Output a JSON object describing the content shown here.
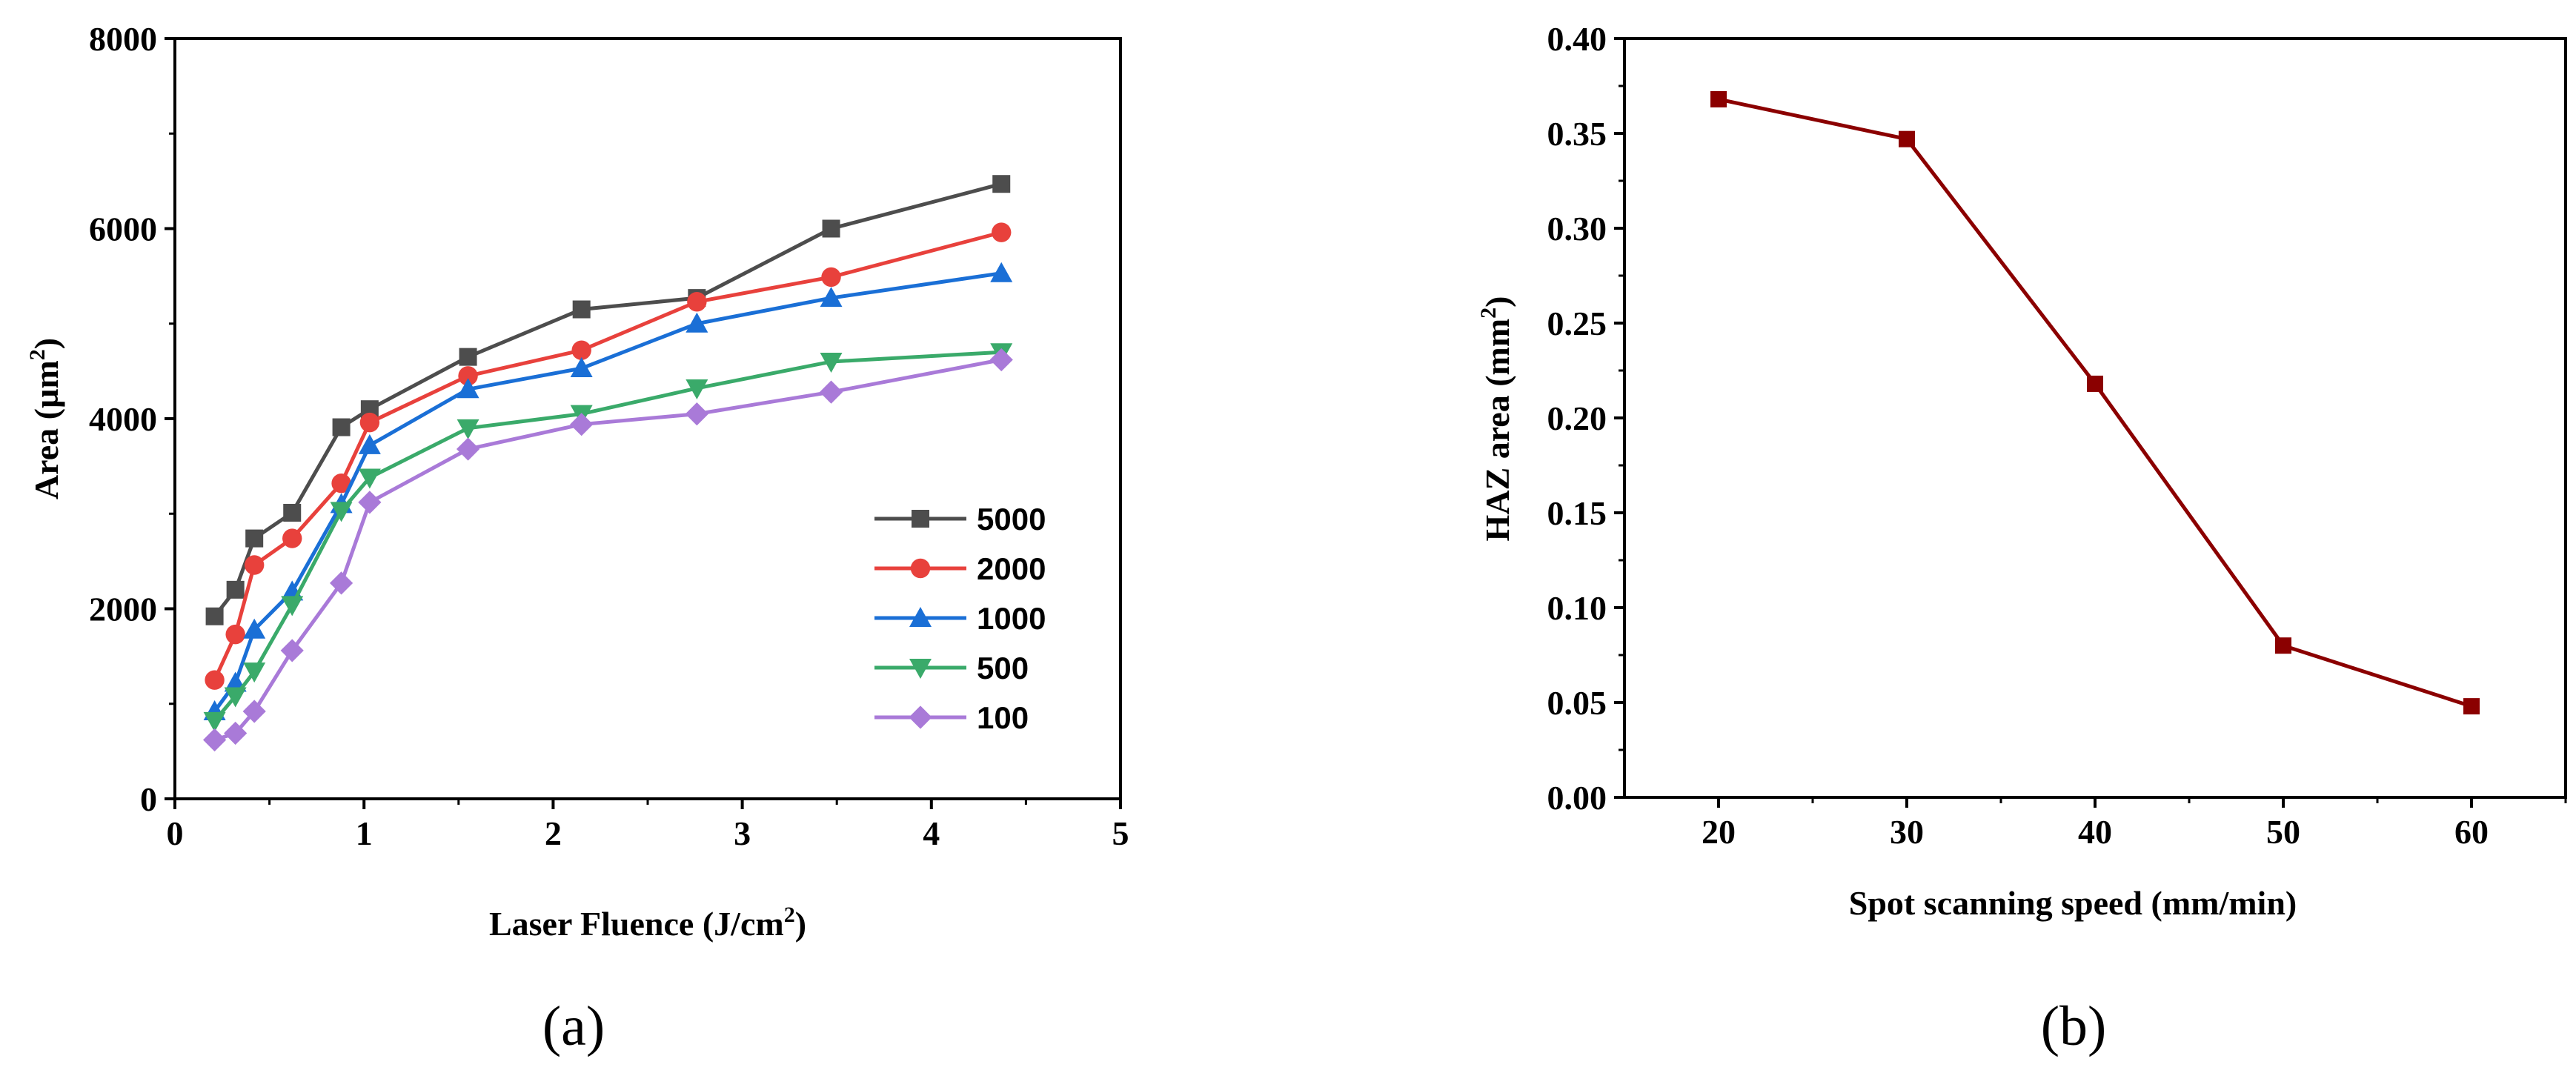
{
  "chart_data": [
    {
      "type": "line",
      "panel_label": "(a)",
      "xlabel": "Laser Fluence (J/cm2)",
      "xlabel_parts": {
        "main": "Laser Fluence (J/cm",
        "sup": "2",
        "close": ")"
      },
      "ylabel": "Area (µm2)",
      "ylabel_parts": {
        "main": "Area (µm",
        "sup": "2",
        "close": ")"
      },
      "xlim": [
        0,
        5
      ],
      "ylim": [
        0,
        8000
      ],
      "xticks": [
        "0",
        "1",
        "2",
        "3",
        "4",
        "5"
      ],
      "xtick_values": [
        0,
        1,
        2,
        3,
        4,
        5
      ],
      "yticks": [
        "0",
        "2000",
        "4000",
        "6000",
        "8000"
      ],
      "ytick_values": [
        0,
        2000,
        4000,
        6000,
        8000
      ],
      "legend_position": "bottom-right",
      "series": [
        {
          "name": "5000",
          "color": "#4d4d4d",
          "marker": "square",
          "x": [
            0.21,
            0.32,
            0.42,
            0.62,
            0.88,
            1.03,
            1.55,
            2.15,
            2.76,
            3.47,
            4.37
          ],
          "y": [
            1920,
            2200,
            2740,
            3010,
            3910,
            4100,
            4650,
            5150,
            5270,
            6000,
            6470
          ]
        },
        {
          "name": "2000",
          "color": "#e8413c",
          "marker": "circle",
          "x": [
            0.21,
            0.32,
            0.42,
            0.62,
            0.88,
            1.03,
            1.55,
            2.15,
            2.76,
            3.47,
            4.37
          ],
          "y": [
            1250,
            1730,
            2460,
            2740,
            3320,
            3960,
            4450,
            4720,
            5230,
            5490,
            5960
          ]
        },
        {
          "name": "1000",
          "color": "#1a6fd6",
          "marker": "triangle-up",
          "x": [
            0.21,
            0.32,
            0.42,
            0.62,
            0.88,
            1.03,
            1.55,
            2.15,
            2.76,
            3.47,
            4.37
          ],
          "y": [
            920,
            1220,
            1780,
            2180,
            3100,
            3720,
            4310,
            4530,
            5000,
            5270,
            5530
          ]
        },
        {
          "name": "500",
          "color": "#3aaa6a",
          "marker": "triangle-down",
          "x": [
            0.21,
            0.32,
            0.42,
            0.62,
            0.88,
            1.03,
            1.55,
            2.15,
            2.76,
            3.47,
            4.37
          ],
          "y": [
            820,
            1080,
            1340,
            2040,
            3030,
            3380,
            3900,
            4050,
            4320,
            4600,
            4700
          ]
        },
        {
          "name": "100",
          "color": "#a97ad8",
          "marker": "diamond",
          "x": [
            0.21,
            0.32,
            0.42,
            0.62,
            0.88,
            1.03,
            1.55,
            2.15,
            2.76,
            3.47,
            4.37
          ],
          "y": [
            620,
            690,
            920,
            1560,
            2270,
            3120,
            3680,
            3940,
            4050,
            4280,
            4620
          ]
        }
      ]
    },
    {
      "type": "line",
      "panel_label": "(b)",
      "xlabel": "Spot scanning speed (mm/min)",
      "ylabel": "HAZ area (mm2)",
      "ylabel_parts": {
        "main": "HAZ area (mm",
        "sup": "2",
        "close": ")"
      },
      "xlim": [
        15,
        65
      ],
      "ylim": [
        0,
        0.4
      ],
      "xticks": [
        "20",
        "30",
        "40",
        "50",
        "60"
      ],
      "xtick_values": [
        20,
        30,
        40,
        50,
        60
      ],
      "yticks": [
        "0.00",
        "0.05",
        "0.10",
        "0.15",
        "0.20",
        "0.25",
        "0.30",
        "0.35",
        "0.40"
      ],
      "ytick_values": [
        0,
        0.05,
        0.1,
        0.15,
        0.2,
        0.25,
        0.3,
        0.35,
        0.4
      ],
      "series": [
        {
          "name": "HAZ area",
          "color": "#8b0000",
          "marker": "square",
          "x": [
            20,
            30,
            40,
            50,
            60
          ],
          "y": [
            0.368,
            0.347,
            0.218,
            0.08,
            0.048
          ]
        }
      ]
    }
  ]
}
